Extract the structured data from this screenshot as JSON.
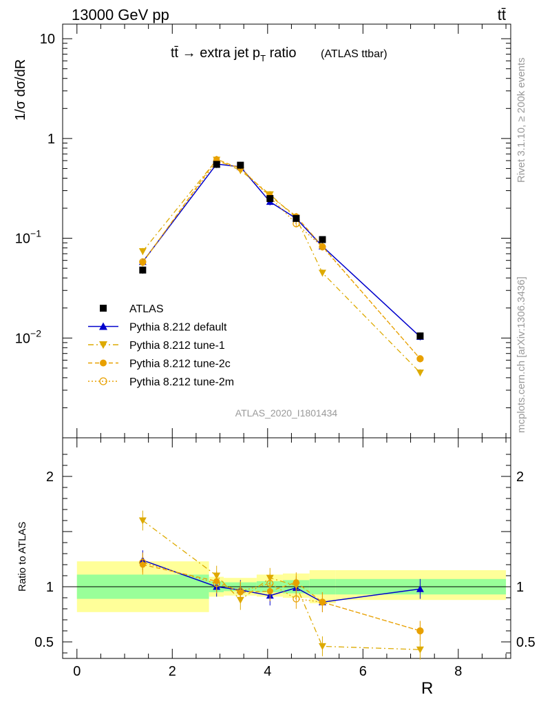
{
  "header": {
    "energy_label": "13000 GeV pp",
    "process_label": "tt̄"
  },
  "title": {
    "main": "tt̄ → extra jet p",
    "sub": "T",
    "tail": " ratio",
    "note": "(ATLAS ttbar)"
  },
  "side": {
    "rivet": "Rivet 3.1.10, ≥ 200k events",
    "mcplots": "mcplots.cern.ch [arXiv:1306.3436]"
  },
  "analysis_label": "ATLAS_2020_I1801434",
  "ylabel_main": "1/σ dσ/dR",
  "ylabel_ratio": "Ratio to ATLAS",
  "xlabel": "R",
  "ticks": {
    "main_y": [
      "10",
      "1",
      "10",
      "10"
    ],
    "main_y_exp": [
      "",
      "",
      "−1",
      "−2"
    ],
    "ratio_y": [
      "2",
      "1",
      "0.5"
    ],
    "ratio_y_right": [
      "2",
      "1",
      "0.5"
    ],
    "x": [
      "0",
      "2",
      "4",
      "6",
      "8"
    ]
  },
  "legend": [
    {
      "label": "ATLAS"
    },
    {
      "label": "Pythia 8.212 default"
    },
    {
      "label": "Pythia 8.212 tune-1"
    },
    {
      "label": "Pythia 8.212 tune-2c"
    },
    {
      "label": "Pythia 8.212 tune-2m"
    }
  ],
  "chart_data": {
    "type": "line",
    "x_range": [
      -0.3,
      9.1
    ],
    "main_ylim": [
      0.001,
      14
    ],
    "main_log": true,
    "ratio_ylim": [
      0.35,
      2.35
    ],
    "x": [
      1.38,
      2.93,
      3.43,
      4.05,
      4.6,
      5.15,
      7.2
    ],
    "bin_edges": [
      0.0,
      2.77,
      3.08,
      3.77,
      4.32,
      4.88,
      5.43,
      9.0
    ],
    "ratio_band_green": [
      [
        0.89,
        1.11
      ],
      [
        0.95,
        1.05
      ],
      [
        0.96,
        1.04
      ],
      [
        0.95,
        1.05
      ],
      [
        0.94,
        1.06
      ],
      [
        0.93,
        1.07
      ],
      [
        0.93,
        1.07
      ]
    ],
    "ratio_band_yellow": [
      [
        0.77,
        1.23
      ],
      [
        0.91,
        1.09
      ],
      [
        0.92,
        1.08
      ],
      [
        0.91,
        1.11
      ],
      [
        0.9,
        1.12
      ],
      [
        0.85,
        1.15
      ],
      [
        0.88,
        1.15
      ]
    ],
    "series": [
      {
        "name": "ATLAS",
        "color": "#000000",
        "marker": "square",
        "dash": "",
        "values": [
          0.048,
          0.55,
          0.54,
          0.25,
          0.158,
          0.097,
          0.0105
        ],
        "ratio": [
          1,
          1,
          1,
          1,
          1,
          1,
          1
        ]
      },
      {
        "name": "Pythia 8.212 default",
        "color": "#0000cc",
        "marker": "tri-up",
        "dash": "",
        "values": [
          0.058,
          0.555,
          0.52,
          0.232,
          0.158,
          0.083,
          0.0103
        ],
        "ratio": [
          1.24,
          1.0,
          0.97,
          0.92,
          0.99,
          0.86,
          0.98
        ]
      },
      {
        "name": "Pythia 8.212 tune-1",
        "color": "#ddaa00",
        "marker": "tri-down",
        "dash": "8,4,2,4",
        "values": [
          0.074,
          0.61,
          0.48,
          0.275,
          0.16,
          0.045,
          0.0045
        ],
        "ratio": [
          1.6,
          1.1,
          0.88,
          1.08,
          1.01,
          0.46,
          0.43
        ]
      },
      {
        "name": "Pythia 8.212 tune-2c",
        "color": "#e8a000",
        "marker": "circle",
        "dash": "6,4",
        "values": [
          0.057,
          0.62,
          0.5,
          0.265,
          0.166,
          0.083,
          0.0062
        ],
        "ratio": [
          1.2,
          1.05,
          0.95,
          0.96,
          1.04,
          0.86,
          0.6
        ]
      },
      {
        "name": "Pythia 8.212 tune-2m",
        "color": "#e8a000",
        "marker": "circle-open",
        "dash": "2,3",
        "values": [
          0.058,
          0.59,
          0.51,
          0.258,
          0.14,
          0.082,
          0.0062
        ],
        "ratio": [
          1.22,
          1.03,
          0.96,
          1.03,
          0.89,
          0.86,
          0.6
        ]
      }
    ]
  }
}
